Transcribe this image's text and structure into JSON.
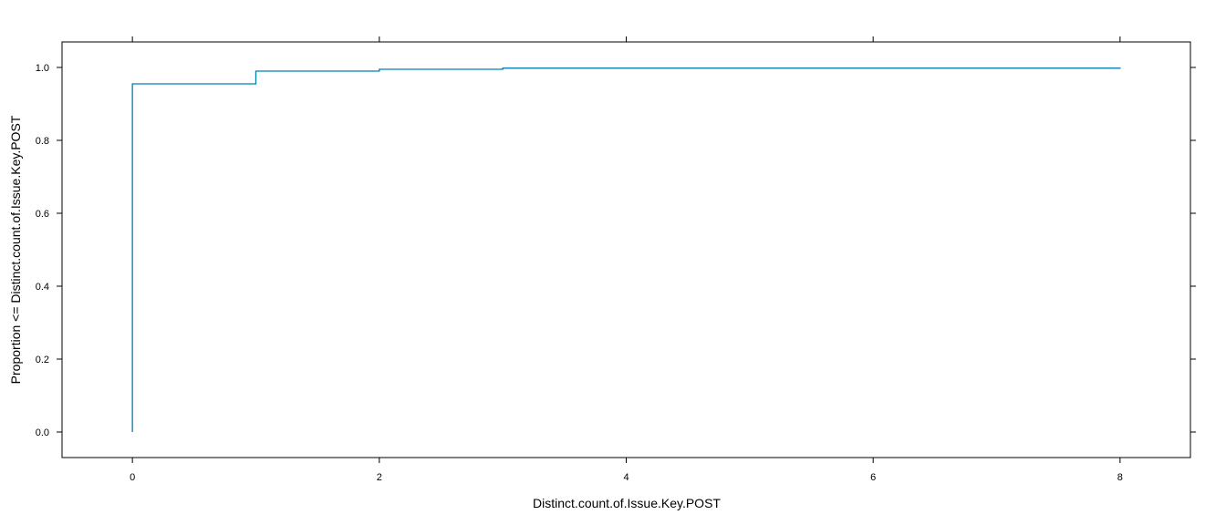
{
  "chart_data": {
    "type": "line",
    "subtype": "ecdf-step",
    "title": "",
    "xlabel": "Distinct.count.of.Issue.Key.POST",
    "ylabel": "Proportion <= Distinct.count.of.Issue.Key.POST",
    "xlim": [
      -0.57,
      8.57
    ],
    "ylim": [
      -0.07,
      1.07
    ],
    "x_ticks": [
      0,
      2,
      4,
      6,
      8
    ],
    "x_tick_labels": [
      "0",
      "2",
      "4",
      "6",
      "8"
    ],
    "y_ticks": [
      0.0,
      0.2,
      0.4,
      0.6,
      0.8,
      1.0
    ],
    "y_tick_labels": [
      "0.0",
      "0.2",
      "0.4",
      "0.6",
      "0.8",
      "1.0"
    ],
    "grid": false,
    "legend": "none",
    "series": [
      {
        "color": "#0080b0",
        "x": [
          0,
          0,
          1,
          1,
          2,
          2,
          3,
          3,
          8,
          8
        ],
        "y": [
          0.0,
          0.955,
          0.955,
          0.99,
          0.99,
          0.995,
          0.995,
          0.998,
          0.998,
          1.0
        ]
      }
    ]
  }
}
